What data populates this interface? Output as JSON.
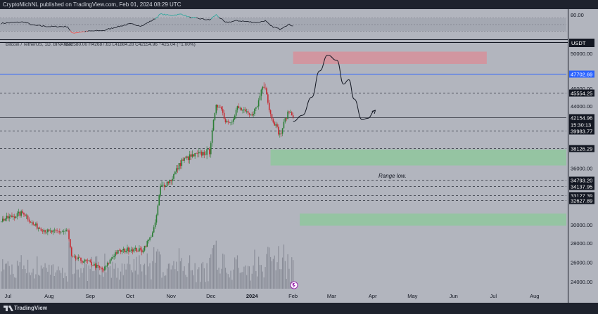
{
  "header": {
    "publisher": "CryptoMichNL published on TradingView.com, Feb 01, 2024 08:29 UTC"
  },
  "symbol": {
    "name": "Bitcoin / TetherUS, 1D, BINANCE",
    "ohlc": "O42580.00  H42687.63  L41884.28  C42154.96  −425.04 (−1.00%)"
  },
  "currency_badge": "USDT",
  "footer": {
    "brand": "TradingView"
  },
  "annotation": "Range low.",
  "colors": {
    "up": "#26a69a",
    "down": "#ef5350",
    "bullish": "#2a7d34",
    "bearish": "#c52b31",
    "blue_line": "#2962ff",
    "supply_zone": "#d6909b",
    "demand_zone": "#8fc79d",
    "background": "#b2b5be"
  },
  "chart_data": {
    "type": "candlestick",
    "y_axis": {
      "ticks": [
        "50000.00",
        "46000.00",
        "44000.00",
        "40000.00",
        "36000.00",
        "30000.00",
        "28000.00",
        "26000.00",
        "24000.00"
      ],
      "scale_stops": [
        [
          23000,
          402
        ],
        [
          28000,
          333
        ],
        [
          30000,
          307
        ],
        [
          40000,
          173
        ],
        [
          44000,
          138
        ],
        [
          50000,
          63
        ]
      ]
    },
    "x_axis": {
      "labels": [
        "Jul",
        "Aug",
        "Sep",
        "Oct",
        "Nov",
        "Dec",
        "2024",
        "Feb",
        "Mar",
        "Apr",
        "May",
        "Jun",
        "Jul",
        "Aug"
      ],
      "label_dates": [
        "2023-07-01",
        "2023-08-01",
        "2023-09-01",
        "2023-10-01",
        "2023-11-01",
        "2023-12-01",
        "2024-01-01",
        "2024-02-01",
        "2024-03-01",
        "2024-04-01",
        "2024-05-01",
        "2024-06-01",
        "2024-07-01",
        "2024-08-01"
      ],
      "range": [
        "2023-06-25",
        "2024-08-25"
      ]
    },
    "horizontal_levels": [
      {
        "price": 47702.69,
        "label": "47702.69",
        "style": "solid",
        "tag_color": "#2962ff"
      },
      {
        "price": 45554.25,
        "label": "45554.25",
        "style": "dashed",
        "tag_color": "#131722"
      },
      {
        "price": 42154.96,
        "label": "42154.96",
        "sublabel": "15:30:13",
        "style": "solid",
        "tag_color": "#131722"
      },
      {
        "price": 39983.77,
        "label": "39983.77",
        "style": "dashed",
        "tag_color": "#131722"
      },
      {
        "price": 38126.29,
        "label": "38126.29",
        "style": "dashed",
        "tag_color": "#131722"
      },
      {
        "price": 34793.2,
        "label": "34793.20",
        "style": "dashed",
        "tag_color": "#131722"
      },
      {
        "price": 34137.95,
        "label": "34137.95",
        "style": "dashed",
        "tag_color": "#131722"
      },
      {
        "price": 33127.39,
        "label": "33127.39",
        "style": "dashed",
        "tag_color": "#131722"
      },
      {
        "price": 32627.89,
        "label": "32627.89",
        "style": "dashed",
        "tag_color": "#131722"
      }
    ],
    "zones": [
      {
        "name": "supply",
        "date_from": "2024-02-01",
        "date_to": "2024-06-26",
        "price_from": 48800,
        "price_to": 50200,
        "color": "#d6909b"
      },
      {
        "name": "range-low",
        "date_from": "2024-01-15",
        "date_to": "2024-08-25",
        "price_from": 36300,
        "price_to": 38000,
        "color": "#8fc79d"
      },
      {
        "name": "lower",
        "date_from": "2024-02-06",
        "date_to": "2024-08-25",
        "price_from": 29900,
        "price_to": 31200,
        "color": "#8fc79d"
      }
    ],
    "projection": [
      [
        "2024-02-01",
        41500
      ],
      [
        "2024-02-08",
        42500
      ],
      [
        "2024-02-15",
        45000
      ],
      [
        "2024-02-21",
        48000
      ],
      [
        "2024-02-27",
        49800
      ],
      [
        "2024-03-05",
        49200
      ],
      [
        "2024-03-10",
        46500
      ],
      [
        "2024-03-14",
        47000
      ],
      [
        "2024-03-18",
        44800
      ],
      [
        "2024-03-24",
        41800
      ],
      [
        "2024-03-28",
        42000
      ],
      [
        "2024-04-03",
        43300
      ]
    ],
    "price_points": [
      [
        "2023-06-26",
        30500
      ],
      [
        "2023-07-13",
        31300
      ],
      [
        "2023-07-20",
        30000
      ],
      [
        "2023-08-01",
        29200
      ],
      [
        "2023-08-15",
        29300
      ],
      [
        "2023-08-18",
        26500
      ],
      [
        "2023-08-31",
        26000
      ],
      [
        "2023-09-11",
        25200
      ],
      [
        "2023-09-20",
        27000
      ],
      [
        "2023-10-01",
        27400
      ],
      [
        "2023-10-10",
        27200
      ],
      [
        "2023-10-16",
        28500
      ],
      [
        "2023-10-20",
        30000
      ],
      [
        "2023-10-24",
        34000
      ],
      [
        "2023-11-01",
        34800
      ],
      [
        "2023-11-09",
        36800
      ],
      [
        "2023-11-15",
        37200
      ],
      [
        "2023-11-30",
        37800
      ],
      [
        "2023-12-05",
        43800
      ],
      [
        "2023-12-08",
        44200
      ],
      [
        "2023-12-12",
        41500
      ],
      [
        "2023-12-18",
        41800
      ],
      [
        "2023-12-21",
        43800
      ],
      [
        "2023-12-31",
        42400
      ],
      [
        "2024-01-03",
        43400
      ],
      [
        "2024-01-05",
        44000
      ],
      [
        "2024-01-09",
        46500
      ],
      [
        "2024-01-11",
        46400
      ],
      [
        "2024-01-15",
        42600
      ],
      [
        "2024-01-18",
        41200
      ],
      [
        "2024-01-22",
        39500
      ],
      [
        "2024-01-23",
        39800
      ],
      [
        "2024-01-26",
        41800
      ],
      [
        "2024-01-29",
        43200
      ],
      [
        "2024-01-31",
        42550
      ],
      [
        "2024-02-01",
        42155
      ]
    ]
  },
  "rsi_panel": {
    "tick": "80.00",
    "scale_stops": [
      [
        80,
        8
      ],
      [
        20,
        36
      ]
    ],
    "series": [
      [
        "2023-06-26",
        54
      ],
      [
        "2023-07-13",
        58
      ],
      [
        "2023-07-20",
        48
      ],
      [
        "2023-08-01",
        44
      ],
      [
        "2023-08-15",
        44
      ],
      [
        "2023-08-18",
        24
      ],
      [
        "2023-08-31",
        30
      ],
      [
        "2023-09-11",
        32
      ],
      [
        "2023-09-20",
        42
      ],
      [
        "2023-10-01",
        52
      ],
      [
        "2023-10-10",
        46
      ],
      [
        "2023-10-20",
        68
      ],
      [
        "2023-10-24",
        82
      ],
      [
        "2023-11-01",
        78
      ],
      [
        "2023-11-09",
        82
      ],
      [
        "2023-11-15",
        72
      ],
      [
        "2023-11-30",
        64
      ],
      [
        "2023-12-05",
        80
      ],
      [
        "2023-12-12",
        56
      ],
      [
        "2023-12-21",
        62
      ],
      [
        "2023-12-31",
        58
      ],
      [
        "2024-01-05",
        56
      ],
      [
        "2024-01-11",
        62
      ],
      [
        "2024-01-15",
        46
      ],
      [
        "2024-01-22",
        36
      ],
      [
        "2024-01-26",
        46
      ],
      [
        "2024-01-29",
        50
      ],
      [
        "2024-02-01",
        46
      ]
    ]
  }
}
